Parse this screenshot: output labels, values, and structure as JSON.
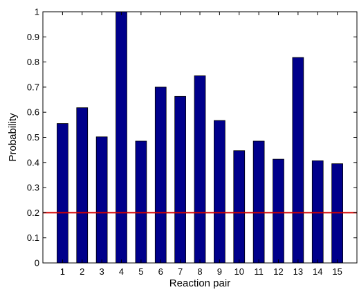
{
  "chart_data": {
    "type": "bar",
    "title": "",
    "xlabel": "Reaction pair",
    "ylabel": "Probability",
    "categories": [
      "1",
      "2",
      "3",
      "4",
      "5",
      "6",
      "7",
      "8",
      "9",
      "10",
      "11",
      "12",
      "13",
      "14",
      "15"
    ],
    "values": [
      0.555,
      0.618,
      0.502,
      1.0,
      0.485,
      0.7,
      0.663,
      0.745,
      0.567,
      0.447,
      0.485,
      0.413,
      0.818,
      0.407,
      0.395
    ],
    "ylim": [
      0,
      1
    ],
    "yticks": [
      "0",
      "0.1",
      "0.2",
      "0.3",
      "0.4",
      "0.5",
      "0.6",
      "0.7",
      "0.8",
      "0.9",
      "1"
    ],
    "reference_line": {
      "y": 0.2,
      "color": "#d40000"
    },
    "bar_color": "#00008b",
    "grid": false,
    "legend": "none"
  }
}
